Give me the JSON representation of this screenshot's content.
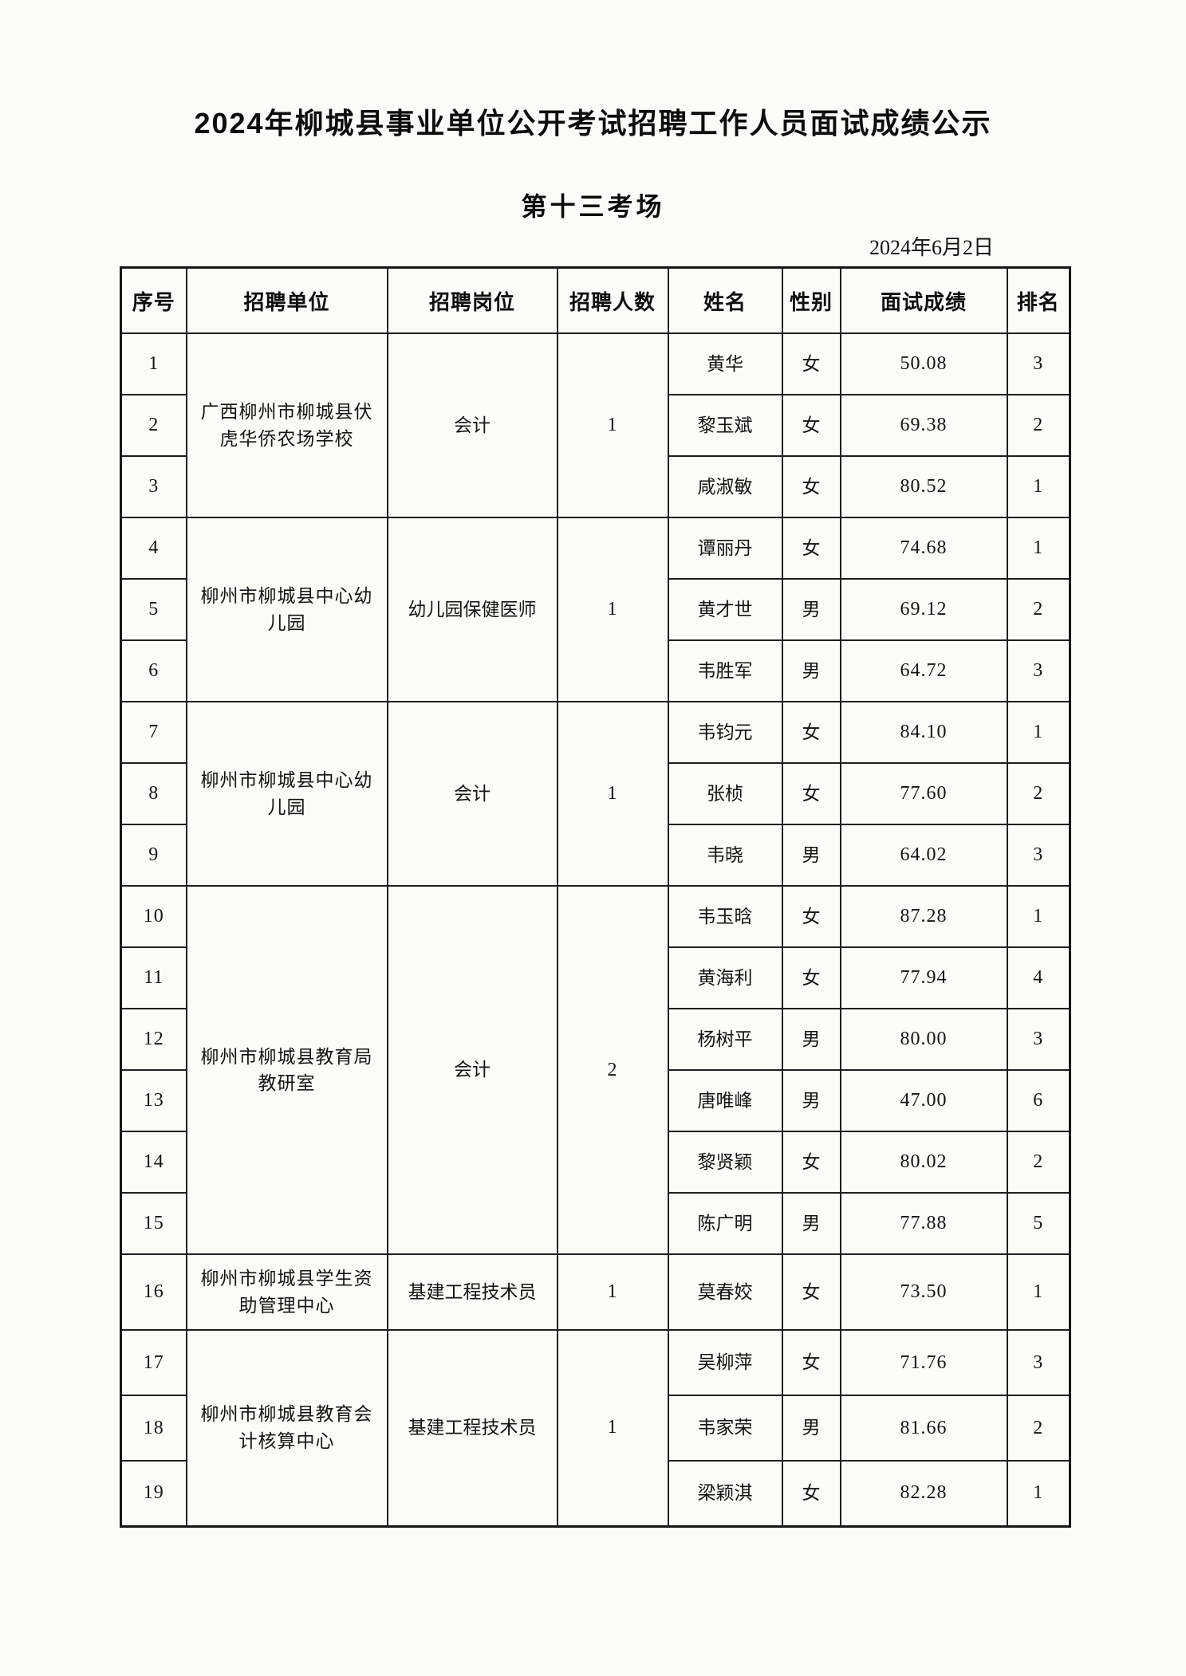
{
  "page": {
    "title": "2024年柳城县事业单位公开考试招聘工作人员面试成绩公示",
    "subtitle": "第十三考场",
    "date": "2024年6月2日"
  },
  "table": {
    "headers": [
      "序号",
      "招聘单位",
      "招聘岗位",
      "招聘人数",
      "姓名",
      "性别",
      "面试成绩",
      "排名"
    ],
    "groups": [
      {
        "unit": "广西柳州市柳城县伏虎华侨农场学校",
        "position": "会计",
        "count": "1",
        "rows": [
          {
            "no": "1",
            "name": "黄华",
            "gender": "女",
            "score": "50.08",
            "rank": "3"
          },
          {
            "no": "2",
            "name": "黎玉斌",
            "gender": "女",
            "score": "69.38",
            "rank": "2"
          },
          {
            "no": "3",
            "name": "咸淑敏",
            "gender": "女",
            "score": "80.52",
            "rank": "1"
          }
        ]
      },
      {
        "unit": "柳州市柳城县中心幼儿园",
        "position": "幼儿园保健医师",
        "count": "1",
        "rows": [
          {
            "no": "4",
            "name": "谭丽丹",
            "gender": "女",
            "score": "74.68",
            "rank": "1"
          },
          {
            "no": "5",
            "name": "黄才世",
            "gender": "男",
            "score": "69.12",
            "rank": "2"
          },
          {
            "no": "6",
            "name": "韦胜军",
            "gender": "男",
            "score": "64.72",
            "rank": "3"
          }
        ]
      },
      {
        "unit": "柳州市柳城县中心幼儿园",
        "position": "会计",
        "count": "1",
        "rows": [
          {
            "no": "7",
            "name": "韦钧元",
            "gender": "女",
            "score": "84.10",
            "rank": "1"
          },
          {
            "no": "8",
            "name": "张桢",
            "gender": "女",
            "score": "77.60",
            "rank": "2"
          },
          {
            "no": "9",
            "name": "韦晓",
            "gender": "男",
            "score": "64.02",
            "rank": "3"
          }
        ]
      },
      {
        "unit": "柳州市柳城县教育局教研室",
        "position": "会计",
        "count": "2",
        "rows": [
          {
            "no": "10",
            "name": "韦玉晗",
            "gender": "女",
            "score": "87.28",
            "rank": "1"
          },
          {
            "no": "11",
            "name": "黄海利",
            "gender": "女",
            "score": "77.94",
            "rank": "4"
          },
          {
            "no": "12",
            "name": "杨树平",
            "gender": "男",
            "score": "80.00",
            "rank": "3"
          },
          {
            "no": "13",
            "name": "唐唯峰",
            "gender": "男",
            "score": "47.00",
            "rank": "6"
          },
          {
            "no": "14",
            "name": "黎贤颖",
            "gender": "女",
            "score": "80.02",
            "rank": "2"
          },
          {
            "no": "15",
            "name": "陈广明",
            "gender": "男",
            "score": "77.88",
            "rank": "5"
          }
        ]
      },
      {
        "unit": "柳州市柳城县学生资助管理中心",
        "position": "基建工程技术员",
        "count": "1",
        "rows": [
          {
            "no": "16",
            "name": "莫春姣",
            "gender": "女",
            "score": "73.50",
            "rank": "1"
          }
        ]
      },
      {
        "unit": "柳州市柳城县教育会计核算中心",
        "position": "基建工程技术员",
        "count": "1",
        "rows": [
          {
            "no": "17",
            "name": "吴柳萍",
            "gender": "女",
            "score": "71.76",
            "rank": "3"
          },
          {
            "no": "18",
            "name": "韦家荣",
            "gender": "男",
            "score": "81.66",
            "rank": "2"
          },
          {
            "no": "19",
            "name": "梁颖淇",
            "gender": "女",
            "score": "82.28",
            "rank": "1"
          }
        ]
      }
    ]
  }
}
